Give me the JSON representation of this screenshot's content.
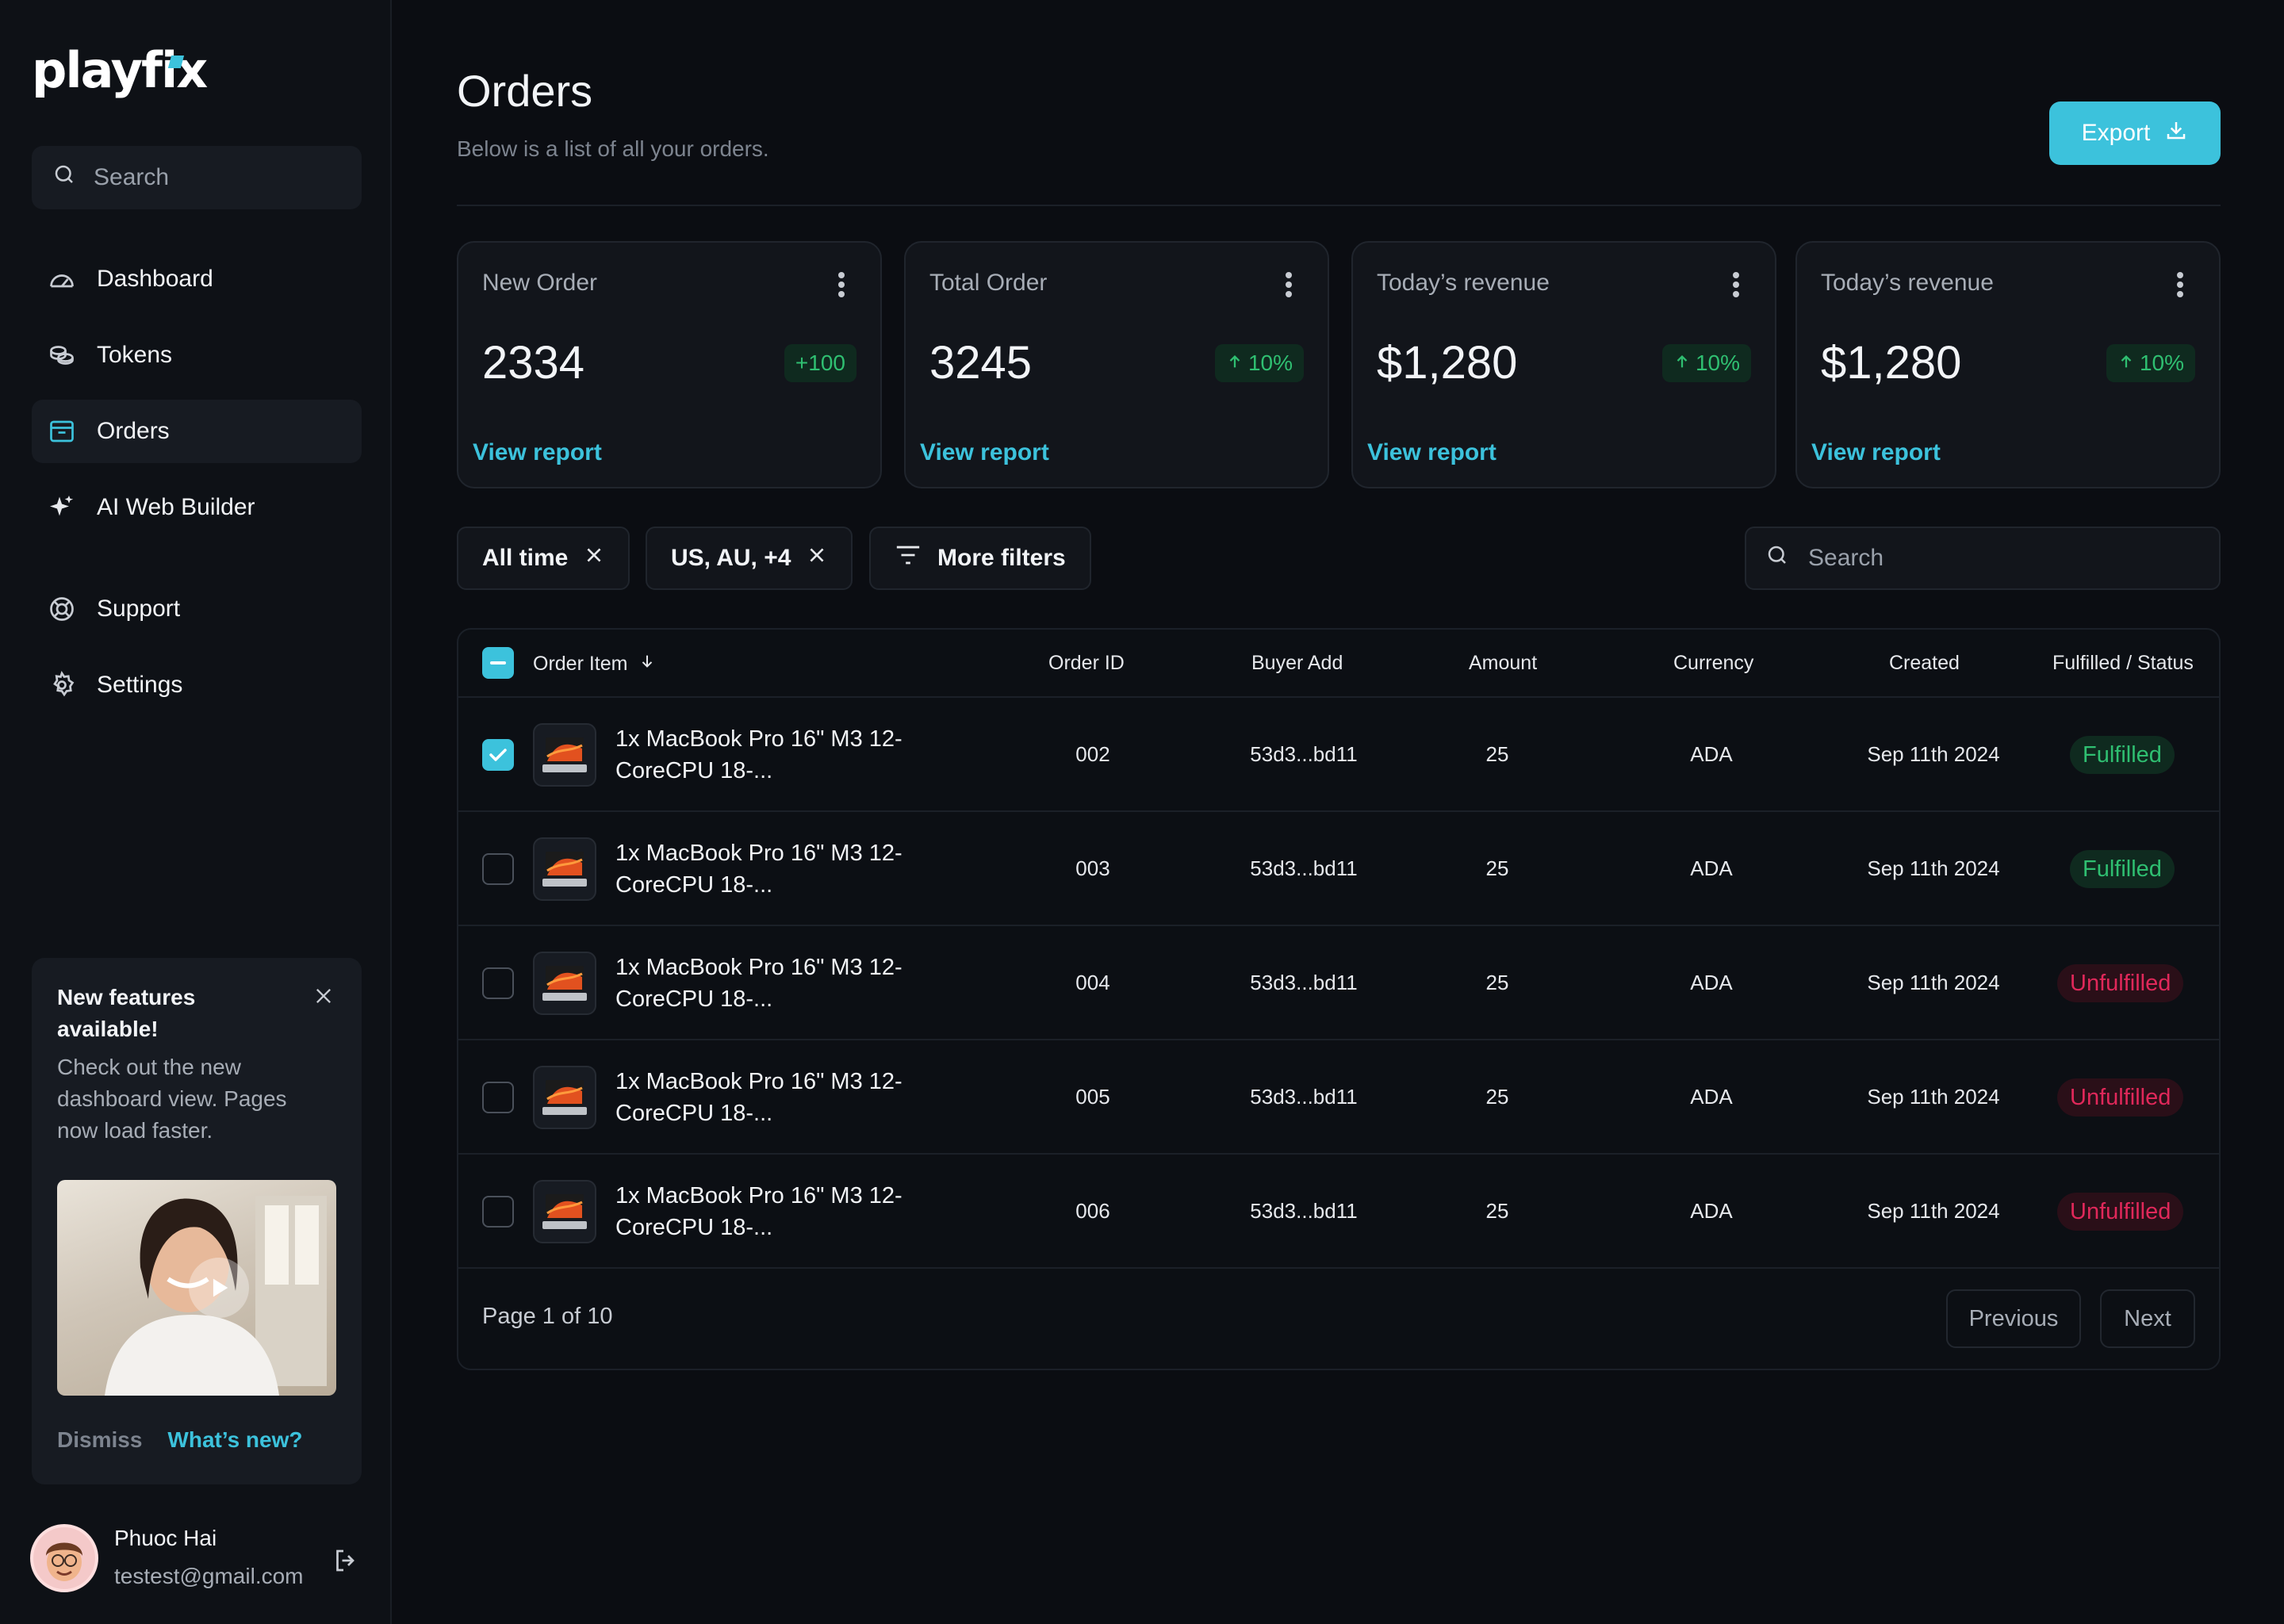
{
  "app": {
    "logo": "playfix"
  },
  "sidebar": {
    "search_placeholder": "Search",
    "items": [
      {
        "label": "Dashboard",
        "icon": "dashboard-icon"
      },
      {
        "label": "Tokens",
        "icon": "coins-icon"
      },
      {
        "label": "Orders",
        "icon": "inbox-icon",
        "active": true
      },
      {
        "label": "AI Web Builder",
        "icon": "sparkle-icon"
      },
      {
        "label": "Support",
        "icon": "lifebuoy-icon"
      },
      {
        "label": "Settings",
        "icon": "gear-icon"
      }
    ],
    "promo": {
      "title": "New features available!",
      "text": "Check out the new dashboard view. Pages now load faster.",
      "dismiss": "Dismiss",
      "whats_new": "What’s new?"
    },
    "user": {
      "name": "Phuoc Hai",
      "email": "testest@gmail.com"
    }
  },
  "header": {
    "title": "Orders",
    "subtitle": "Below is a list of all your orders.",
    "export_label": "Export"
  },
  "cards": [
    {
      "label": "New Order",
      "value": "2334",
      "badge": "+100",
      "arrow": false,
      "link": "View report"
    },
    {
      "label": "Total Order",
      "value": "3245",
      "badge": "10%",
      "arrow": true,
      "link": "View report"
    },
    {
      "label": "Today’s revenue",
      "value": "$1,280",
      "badge": "10%",
      "arrow": true,
      "link": "View report"
    },
    {
      "label": "Today’s revenue",
      "value": "$1,280",
      "badge": "10%",
      "arrow": true,
      "link": "View report"
    }
  ],
  "filters": {
    "chips": [
      "All time",
      "US, AU, +4"
    ],
    "more_filters": "More filters",
    "search_placeholder": "Search"
  },
  "table": {
    "columns": [
      "Order Item",
      "Order ID",
      "Buyer Add",
      "Amount",
      "Currency",
      "Created",
      "Fulfilled / Status"
    ],
    "rows": [
      {
        "item": "1x MacBook Pro 16\" M3 12-CoreCPU 18-...",
        "id": "002",
        "buyer": "53d3...bd11",
        "amount": "25",
        "currency": "ADA",
        "created": "Sep 11th 2024",
        "status": "Fulfilled",
        "checked": true
      },
      {
        "item": "1x MacBook Pro 16\" M3 12-CoreCPU 18-...",
        "id": "003",
        "buyer": "53d3...bd11",
        "amount": "25",
        "currency": "ADA",
        "created": "Sep 11th 2024",
        "status": "Fulfilled",
        "checked": false
      },
      {
        "item": "1x MacBook Pro 16\" M3 12-CoreCPU 18-...",
        "id": "004",
        "buyer": "53d3...bd11",
        "amount": "25",
        "currency": "ADA",
        "created": "Sep 11th 2024",
        "status": "Unfulfilled",
        "checked": false
      },
      {
        "item": "1x MacBook Pro 16\" M3 12-CoreCPU 18-...",
        "id": "005",
        "buyer": "53d3...bd11",
        "amount": "25",
        "currency": "ADA",
        "created": "Sep 11th 2024",
        "status": "Unfulfilled",
        "checked": false
      },
      {
        "item": "1x MacBook Pro 16\" M3 12-CoreCPU 18-...",
        "id": "006",
        "buyer": "53d3...bd11",
        "amount": "25",
        "currency": "ADA",
        "created": "Sep 11th 2024",
        "status": "Unfulfilled",
        "checked": false
      }
    ],
    "pagination": {
      "label": "Page 1 of 10",
      "previous": "Previous",
      "next": "Next"
    }
  },
  "colors": {
    "accent": "#3cc2dc",
    "fulfilled": "#2fbf71",
    "unfulfilled": "#e0285a",
    "background": "#0b0d12"
  }
}
